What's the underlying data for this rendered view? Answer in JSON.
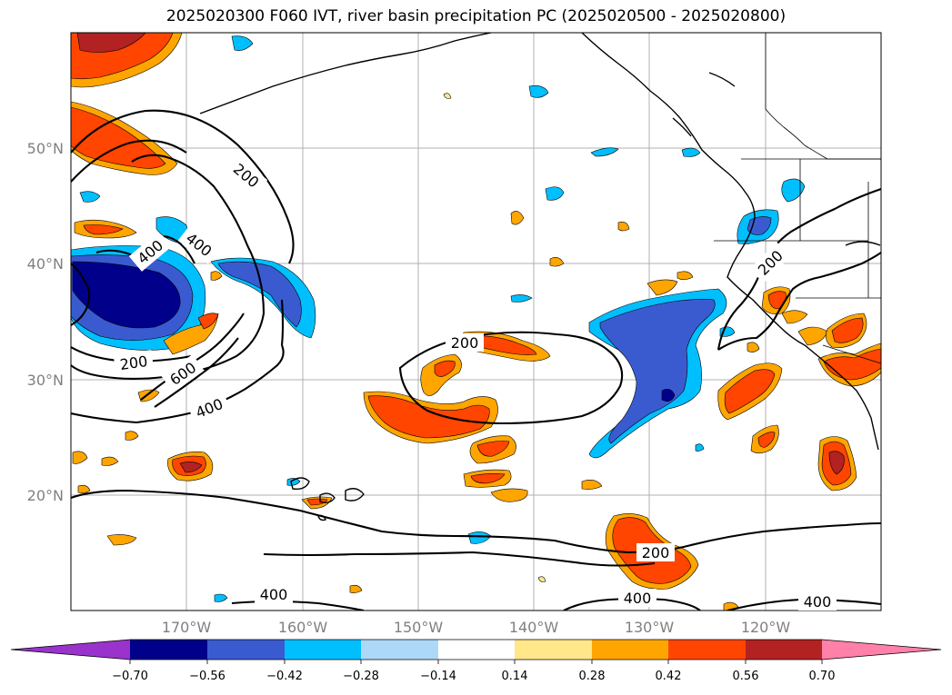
{
  "title": "2025020300 F060 IVT, river basin precipitation PC (2025020500 - 2025020800)",
  "lat_labels": [
    "50°N",
    "40°N",
    "30°N",
    "20°N"
  ],
  "lon_labels": [
    "170°W",
    "160°W",
    "150°W",
    "140°W",
    "130°W",
    "120°W"
  ],
  "contour_labels": [
    "200",
    "400",
    "400",
    "200",
    "600",
    "400",
    "200",
    "200",
    "200",
    "400",
    "400",
    "400"
  ],
  "colorbar": {
    "ticks": [
      "−0.70",
      "−0.56",
      "−0.42",
      "−0.28",
      "−0.14",
      "0.14",
      "0.28",
      "0.42",
      "0.56",
      "0.70"
    ],
    "colors": [
      "#9933cc",
      "#00008b",
      "#3a5bd0",
      "#00bfff",
      "#add8f7",
      "#ffffff",
      "#ffe78a",
      "#ffa500",
      "#ff4500",
      "#b22222",
      "#ff80a8"
    ]
  }
}
